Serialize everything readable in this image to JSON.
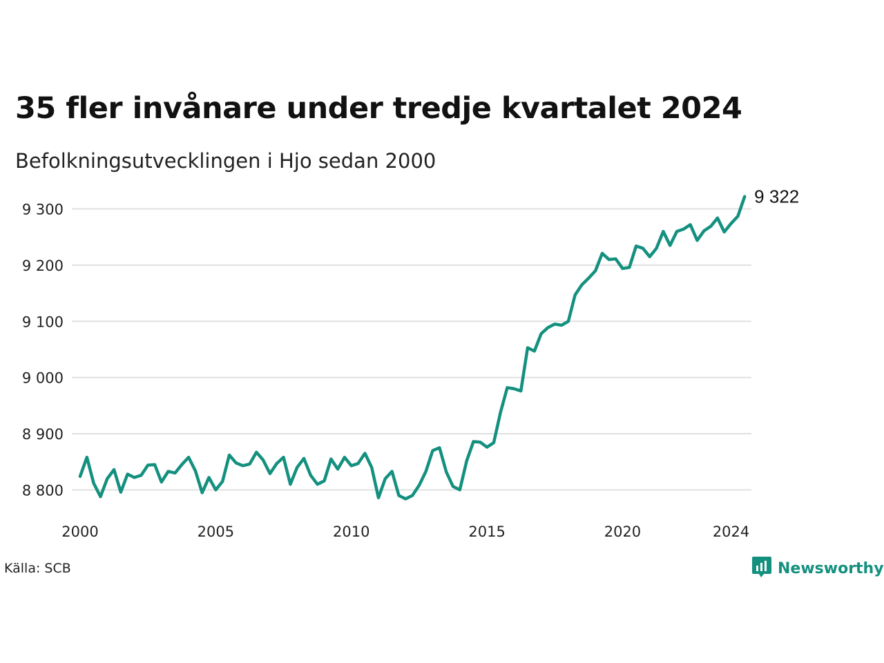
{
  "title": "35 fler invånare under tredje kvartalet 2024",
  "subtitle": "Befolkningsutvecklingen i Hjo sedan 2000",
  "source": "Källa: SCB",
  "brand": {
    "name": "Newsworthy",
    "icon": "newsworthy-logo-icon",
    "color": "#14907f"
  },
  "chart_data": {
    "type": "line",
    "title": "35 fler invånare under tredje kvartalet 2024",
    "subtitle": "Befolkningsutvecklingen i Hjo sedan 2000",
    "xlabel": "",
    "ylabel": "",
    "frequency": "quarterly",
    "x_start": 2000,
    "xlim": [
      2000,
      2024.75
    ],
    "ylim": [
      8750,
      9340
    ],
    "x_ticks": [
      2000,
      2005,
      2010,
      2015,
      2020,
      2024
    ],
    "x_tick_labels": [
      "2000",
      "2005",
      "2010",
      "2015",
      "2020",
      "2024"
    ],
    "y_ticks": [
      8800,
      8900,
      9000,
      9100,
      9200,
      9300
    ],
    "y_tick_labels": [
      "8 800",
      "8 900",
      "9 000",
      "9 100",
      "9 200",
      "9 300"
    ],
    "grid": "horizontal",
    "legend": "none",
    "line_color": "#14907f",
    "end_label": "9 322",
    "values": [
      8824,
      8858,
      8812,
      8788,
      8820,
      8836,
      8796,
      8828,
      8822,
      8826,
      8844,
      8845,
      8814,
      8833,
      8830,
      8845,
      8858,
      8834,
      8795,
      8822,
      8800,
      8815,
      8862,
      8848,
      8843,
      8846,
      8867,
      8853,
      8829,
      8847,
      8858,
      8810,
      8840,
      8856,
      8826,
      8810,
      8816,
      8855,
      8837,
      8858,
      8843,
      8847,
      8865,
      8840,
      8786,
      8820,
      8833,
      8790,
      8784,
      8790,
      8808,
      8833,
      8870,
      8875,
      8832,
      8806,
      8800,
      8851,
      8886,
      8885,
      8876,
      8884,
      8938,
      8982,
      8980,
      8976,
      9053,
      9047,
      9078,
      9089,
      9095,
      9093,
      9100,
      9147,
      9165,
      9177,
      9190,
      9221,
      9210,
      9211,
      9194,
      9196,
      9234,
      9230,
      9215,
      9230,
      9260,
      9235,
      9260,
      9264,
      9272,
      9244,
      9261,
      9269,
      9284,
      9259,
      9274,
      9287,
      9322
    ]
  }
}
